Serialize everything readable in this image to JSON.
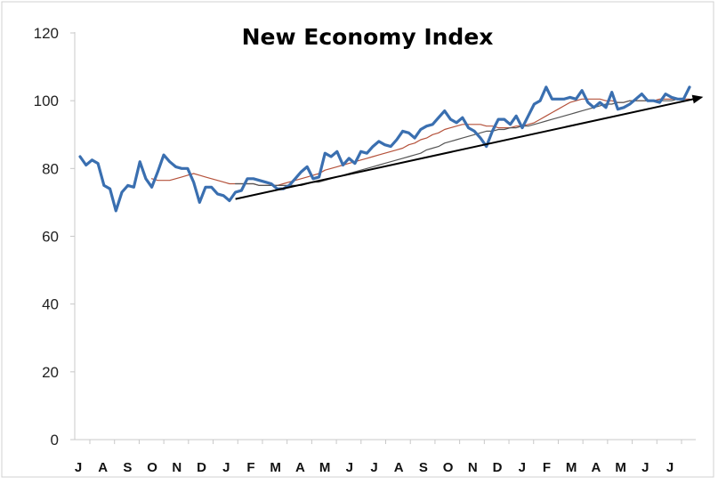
{
  "chart_data": {
    "type": "line",
    "title": "New Economy Index",
    "xlabel": "",
    "ylabel": "",
    "ylim": [
      0,
      120
    ],
    "yticks": [
      0,
      20,
      40,
      60,
      80,
      100,
      120
    ],
    "grid": false,
    "legend": "none",
    "x_tick_labels": [
      "J",
      "A",
      "S",
      "O",
      "N",
      "D",
      "J",
      "F",
      "M",
      "A",
      "M",
      "J",
      "J",
      "A",
      "S",
      "O",
      "N",
      "D",
      "J",
      "F",
      "M",
      "A",
      "M",
      "J",
      "J"
    ],
    "series": [
      {
        "color": "#3a6fb0",
        "width": "thick",
        "values": [
          83.5,
          81,
          82.5,
          81.5,
          75,
          74,
          67.5,
          73,
          75,
          74.5,
          82,
          77,
          74.5,
          79,
          84,
          82,
          80.5,
          80,
          80,
          76,
          70,
          74.5,
          74.5,
          72.5,
          72,
          70.5,
          73,
          73.5,
          77,
          77,
          76.5,
          76,
          75.5,
          74,
          74,
          75,
          77,
          79,
          80.5,
          77,
          77.5,
          84.5,
          83.5,
          85,
          81,
          83,
          81.5,
          85,
          84.5,
          86.5,
          88,
          87,
          86.5,
          88.5,
          91,
          90.5,
          89,
          91.5,
          92.5,
          93,
          95,
          97,
          94.5,
          93.5,
          95,
          92,
          91,
          89,
          86.5,
          91,
          94.5,
          94.5,
          93,
          95.5,
          92,
          95.5,
          99,
          100,
          104,
          100.5,
          100.5,
          100.5,
          101,
          100.5,
          103,
          99.5,
          98,
          99.5,
          98,
          102.5,
          97.5,
          98,
          99,
          100.5,
          102,
          100,
          100,
          99.5,
          102,
          101,
          100.5,
          100.5,
          104
        ]
      },
      {
        "color": "#b5523b",
        "width": "thin",
        "values": [
          null,
          null,
          null,
          null,
          null,
          null,
          null,
          null,
          null,
          null,
          null,
          null,
          77,
          76.5,
          76.5,
          76.5,
          77,
          77.5,
          78,
          78.5,
          78,
          77.5,
          77,
          76.5,
          76,
          75.5,
          75.5,
          75.5,
          75.5,
          75.5,
          75,
          75,
          75,
          75,
          75.5,
          76,
          76.5,
          77,
          77.5,
          78,
          78.5,
          79.5,
          80,
          80.5,
          81,
          81.5,
          82,
          82.5,
          83,
          83.5,
          84,
          84.5,
          85,
          85.5,
          86,
          87,
          87.5,
          88.5,
          89,
          90,
          90.5,
          91.5,
          92,
          92.5,
          93,
          93,
          93,
          93,
          92.5,
          92.5,
          92,
          92,
          92,
          92.5,
          92.5,
          93,
          93.5,
          94.5,
          95.5,
          96.5,
          97.5,
          98.5,
          99.5,
          100,
          100.5,
          100.5,
          100.5,
          100.5,
          100,
          100,
          99.5,
          99.5,
          100,
          100,
          100,
          100,
          100,
          100.5,
          100.5,
          100.5,
          100.5,
          100.5,
          100.5
        ]
      },
      {
        "color": "#555555",
        "width": "thin",
        "values": [
          null,
          null,
          null,
          null,
          null,
          null,
          null,
          null,
          null,
          null,
          null,
          null,
          null,
          null,
          null,
          null,
          null,
          null,
          null,
          null,
          null,
          null,
          null,
          null,
          null,
          null,
          75.5,
          75.5,
          75.5,
          75.5,
          75,
          75,
          75,
          75,
          75,
          75,
          75,
          75,
          75.5,
          76,
          76,
          76.5,
          77,
          77.5,
          78,
          78.5,
          79,
          79.5,
          80,
          80.5,
          81,
          81.5,
          82,
          82.5,
          83,
          83.5,
          84,
          84.5,
          85.5,
          86,
          86.5,
          87.5,
          88,
          88.5,
          89,
          89.5,
          90,
          90.5,
          91,
          91,
          91.5,
          91.5,
          92,
          92,
          92.5,
          92.5,
          93,
          93.5,
          94,
          94.5,
          95,
          95.5,
          96,
          96.5,
          97,
          97.5,
          98,
          98.5,
          99,
          99,
          99.5,
          99.5,
          100,
          100,
          100,
          100,
          100,
          100,
          100,
          100,
          100.5
        ]
      }
    ],
    "trend_arrow": {
      "color": "#000000",
      "from": [
        26,
        71
      ],
      "to": [
        104,
        101
      ]
    }
  }
}
